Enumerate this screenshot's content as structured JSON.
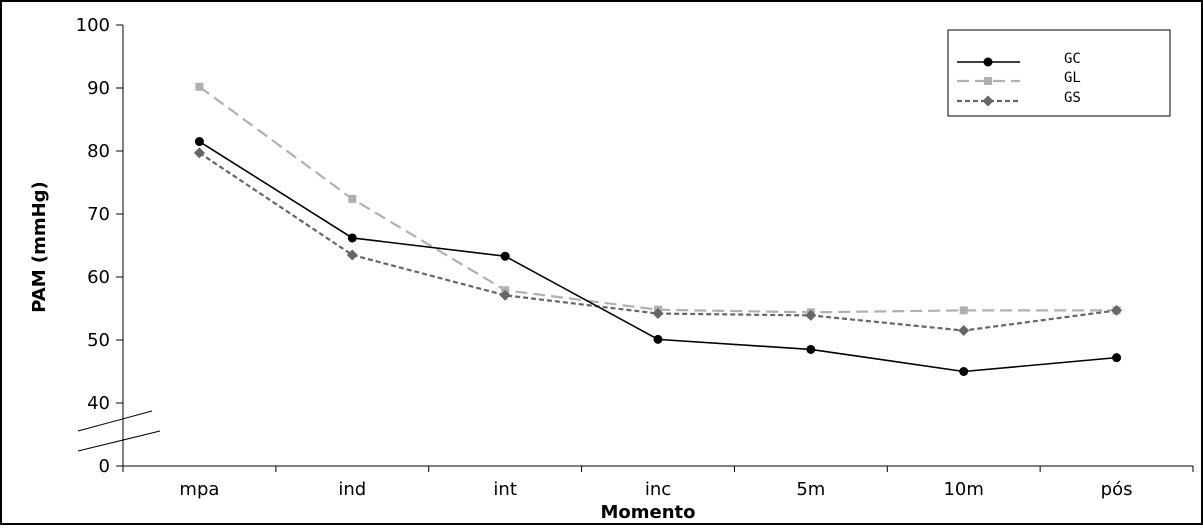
{
  "chart_data": {
    "type": "line",
    "title": "",
    "xlabel": "Momento",
    "ylabel": "PAM (mmHg)",
    "categories": [
      "mpa",
      "ind",
      "int",
      "inc",
      "5m",
      "10m",
      "pós"
    ],
    "y_ticks": [
      "0",
      "40",
      "50",
      "60",
      "70",
      "80",
      "90",
      "100"
    ],
    "ylim": [
      30,
      100
    ],
    "axis_break": "between 0 and 40",
    "grid": false,
    "legend_position": "top-right",
    "series": [
      {
        "name": "GC",
        "color": "#000000",
        "line_style": "solid",
        "marker": "circle",
        "values": [
          81.5,
          66.2,
          63.3,
          50.1,
          48.5,
          45.0,
          47.2
        ]
      },
      {
        "name": "GL",
        "color": "#b0b0b0",
        "line_style": "dashed",
        "marker": "square",
        "values": [
          90.2,
          72.4,
          57.9,
          54.8,
          54.4,
          54.7,
          54.7
        ]
      },
      {
        "name": "GS",
        "color": "#666666",
        "line_style": "dotted",
        "marker": "diamond",
        "values": [
          79.7,
          63.5,
          57.1,
          54.2,
          53.9,
          51.5,
          54.7
        ]
      }
    ]
  }
}
